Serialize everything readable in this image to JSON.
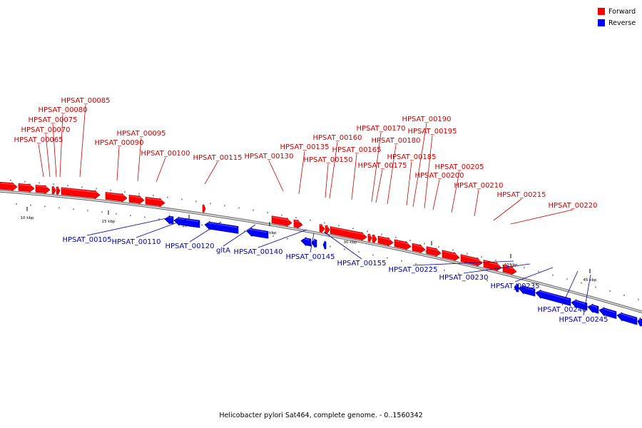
{
  "caption": "Helicobacter pylori Sat464, complete genome. - 0..1560342",
  "legend": [
    {
      "label": "Forward",
      "color": "#ff0000"
    },
    {
      "label": "Reverse",
      "color": "#0000ff"
    }
  ],
  "colors": {
    "forward": "#ff0000",
    "reverse": "#0000ff",
    "forward_label": "#cc0000",
    "reverse_label": "#0000aa",
    "backbone": "#888888"
  },
  "axis_labels": [
    "10 kbp",
    "15 kbp",
    "20 kbp",
    "25 kbp",
    "30 kbp",
    "35 kbp",
    "40 kbp",
    "45 kbp"
  ],
  "forward_genes": [
    "HPSAT_00065",
    "HPSAT_00070",
    "HPSAT_00075",
    "HPSAT_00080",
    "HPSAT_00085",
    "HPSAT_00090",
    "HPSAT_00095",
    "HPSAT_00100",
    "HPSAT_00115",
    "HPSAT_00130",
    "HPSAT_00135",
    "HPSAT_00150",
    "HPSAT_00160",
    "HPSAT_00165",
    "HPSAT_00170",
    "HPSAT_00175",
    "HPSAT_00180",
    "HPSAT_00185",
    "HPSAT_00190",
    "HPSAT_00195",
    "HPSAT_00200",
    "HPSAT_00205",
    "HPSAT_00210",
    "HPSAT_00215",
    "HPSAT_00220"
  ],
  "reverse_genes": [
    "HPSAT_00105",
    "HPSAT_00110",
    "HPSAT_00120",
    "gltA",
    "HPSAT_00140",
    "HPSAT_00145",
    "HPSAT_00155",
    "HPSAT_00225",
    "HPSAT_00230",
    "HPSAT_00235",
    "HPSAT_00240",
    "HPSAT_00245"
  ]
}
